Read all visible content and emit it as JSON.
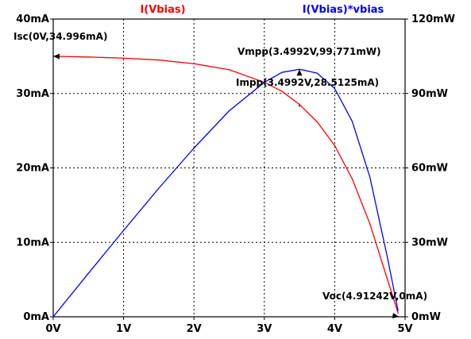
{
  "chart_data": {
    "type": "line",
    "x_axis": {
      "label": "",
      "range": [
        0,
        5
      ],
      "ticks": [
        0,
        1,
        2,
        3,
        4,
        5
      ],
      "tick_labels": [
        "0V",
        "1V",
        "2V",
        "3V",
        "4V",
        "5V"
      ]
    },
    "y_axes": {
      "left": {
        "label": "",
        "range": [
          0,
          40
        ],
        "ticks": [
          0,
          10,
          20,
          30,
          40
        ],
        "tick_labels": [
          "0mA",
          "10mA",
          "20mA",
          "30mA",
          "40mA"
        ]
      },
      "right": {
        "label": "",
        "range": [
          0,
          120
        ],
        "ticks": [
          0,
          30,
          60,
          90,
          120
        ],
        "tick_labels": [
          "0mW",
          "30mW",
          "60mW",
          "90mW",
          "120mW"
        ]
      }
    },
    "grid": true,
    "legend_position": "top",
    "series": [
      {
        "name": "I(Vbias)",
        "axis": "left",
        "color": "#ff0000",
        "x": [
          0,
          0.5,
          1,
          1.5,
          2,
          2.5,
          3,
          3.25,
          3.5,
          3.75,
          4,
          4.25,
          4.5,
          4.75,
          4.9
        ],
        "y": [
          34.996,
          34.9,
          34.75,
          34.5,
          34.0,
          33.2,
          31.5,
          30.3,
          28.5125,
          26.2,
          23.0,
          18.5,
          12.5,
          5.0,
          0.5
        ]
      },
      {
        "name": "I(Vbias)*vbias",
        "axis": "right",
        "color": "#0000ff",
        "x": [
          0,
          0.5,
          1,
          1.5,
          2,
          2.5,
          3,
          3.25,
          3.5,
          3.75,
          4,
          4.25,
          4.5,
          4.75,
          4.9
        ],
        "y": [
          0,
          17.5,
          34.8,
          51.8,
          68.0,
          83.0,
          94.5,
          98.5,
          99.771,
          98.2,
          92.0,
          78.7,
          56.3,
          23.8,
          2.5
        ]
      }
    ],
    "annotations": [
      {
        "text": "Isc(0V,34.996mA)",
        "point": {
          "x": 0,
          "y": 34.996,
          "axis": "left"
        }
      },
      {
        "text": "Vmpp(3.4992V,99.771mW)",
        "point": {
          "x": 3.4992,
          "y": 99.771,
          "axis": "right"
        }
      },
      {
        "text": "Impp(3.4992V,28.5125mA)",
        "point": {
          "x": 3.4992,
          "y": 28.5125,
          "axis": "left"
        }
      },
      {
        "text": "Voc(4.91242V,0mA)",
        "point": {
          "x": 4.91242,
          "y": 0,
          "axis": "left"
        }
      }
    ]
  }
}
